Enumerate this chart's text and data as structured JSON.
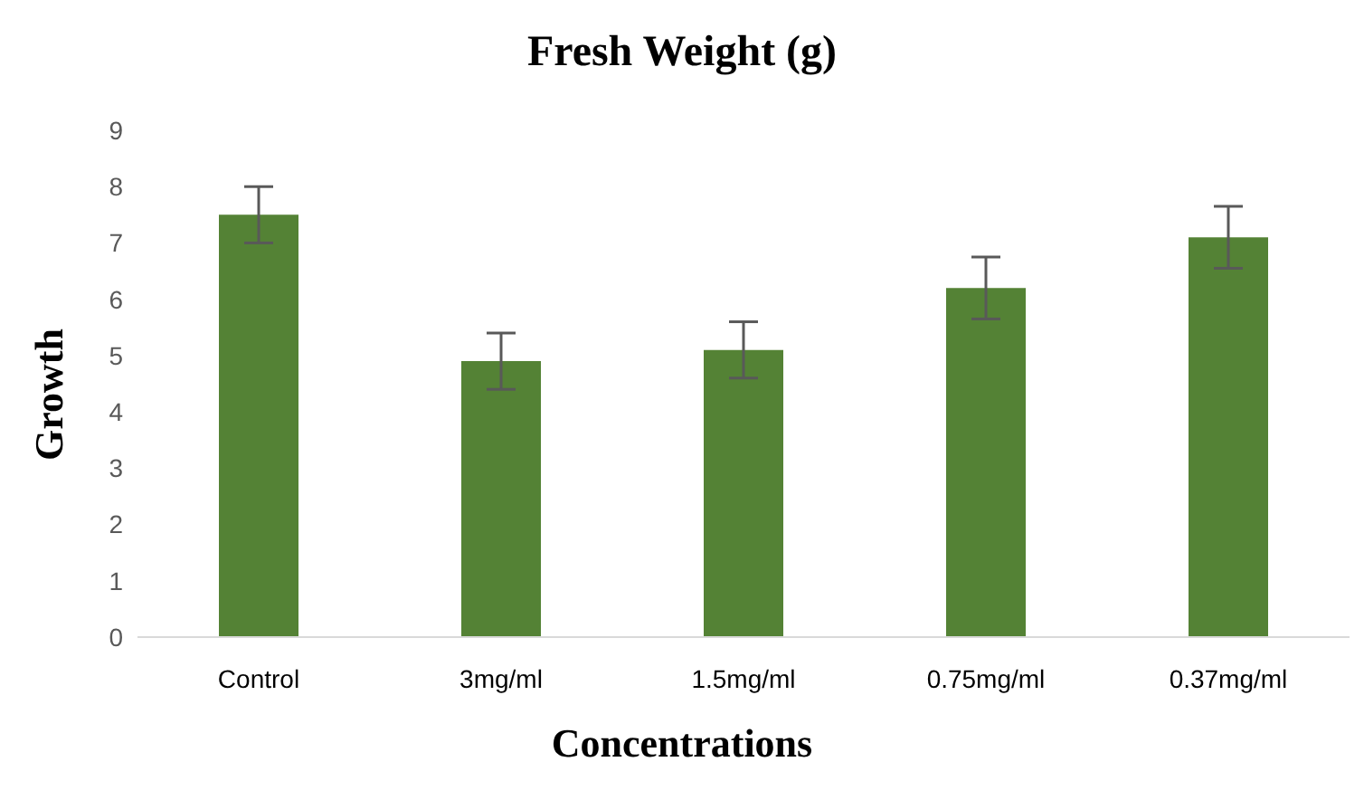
{
  "chart_data": {
    "type": "bar",
    "title": "Fresh Weight (g)",
    "xlabel": "Concentrations",
    "ylabel": "Growth",
    "categories": [
      "Control",
      "3mg/ml",
      "1.5mg/ml",
      "0.75mg/ml",
      "0.37mg/ml"
    ],
    "values": [
      7.5,
      4.9,
      5.1,
      6.2,
      7.1
    ],
    "errors": [
      0.5,
      0.5,
      0.5,
      0.55,
      0.55
    ],
    "color": "#548235",
    "ylim": [
      0,
      9
    ],
    "yticks": [
      0,
      1,
      2,
      3,
      4,
      5,
      6,
      7,
      8,
      9
    ],
    "grid": false,
    "legend": false
  }
}
